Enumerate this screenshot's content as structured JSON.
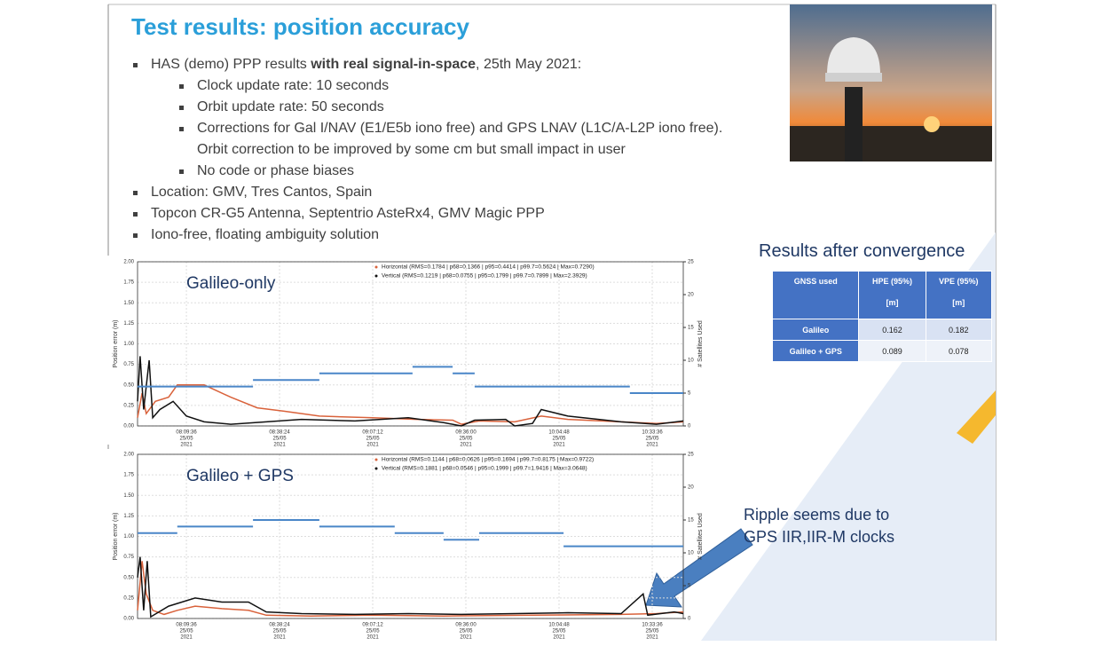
{
  "title": "Test results: position accuracy",
  "bullets": [
    {
      "text": "HAS (demo) PPP results ",
      "bold": "with real signal-in-space",
      "text_after": ", 25th May 2021:",
      "sub": [
        "Clock update rate: 10 seconds",
        "Orbit update rate: 50 seconds",
        "Corrections for Gal I/NAV (E1/E5b iono free) and GPS LNAV (L1C/A-L2P iono free). Orbit correction to be improved by some cm but small impact in user",
        "No code or phase biases"
      ]
    },
    {
      "text": "Location: GMV, Tres Cantos, Spain"
    },
    {
      "text": "Topcon CR-G5 Antenna, Septentrio AsteRx4, GMV Magic PPP"
    },
    {
      "text": "Iono-free, floating ambiguity solution"
    }
  ],
  "table": {
    "title": "Results after convergence",
    "header": [
      "GNSS used",
      "HPE (95%)",
      "VPE (95%)"
    ],
    "header_units": [
      "[m]",
      "[m]"
    ],
    "rows": [
      [
        "Galileo",
        0.162,
        0.182
      ],
      [
        "Galileo + GPS",
        0.089,
        0.078
      ]
    ]
  },
  "annotation": [
    "Ripple seems due to",
    "GPS IIR,IIR-M clocks"
  ],
  "charts": [
    {
      "type": "line",
      "label": "Galileo-only",
      "ylabel": "Position error (m)",
      "y2label": "# Satellites Used",
      "grid": true,
      "xlim": [
        474.5,
        643.2
      ],
      "ylim": [
        0,
        2
      ],
      "y2lim": [
        0,
        25
      ],
      "yticks": [
        {
          "value": 0,
          "label": "0.00"
        },
        {
          "value": 0.25,
          "label": "0.25"
        },
        {
          "value": 0.5,
          "label": "0.50"
        },
        {
          "value": 0.75,
          "label": "0.75"
        },
        {
          "value": 1,
          "label": "1.00"
        },
        {
          "value": 1.25,
          "label": "1.25"
        },
        {
          "value": 1.5,
          "label": "1.50"
        },
        {
          "value": 1.75,
          "label": "1.75"
        },
        {
          "value": 2,
          "label": "2.00"
        }
      ],
      "y2ticks": [
        0,
        5,
        10,
        15,
        20,
        25
      ],
      "xticks": [
        {
          "value": 489.6,
          "label": "08:09:36"
        },
        {
          "value": 518.4,
          "label": "08:38:24"
        },
        {
          "value": 547.2,
          "label": "09:07:12"
        },
        {
          "value": 576,
          "label": "09:36:00"
        },
        {
          "value": 604.8,
          "label": "10:04:48"
        },
        {
          "value": 633.6,
          "label": "10:33:36"
        }
      ],
      "tick_date": "25/05",
      "tick_year": "2021",
      "series": [
        {
          "name": "Horizontal (RMS=0.1784 | p68=0.1366 | p95=0.4414 | p99.7=0.5624 | Max=0.7290)",
          "color": "#d9623b",
          "x": [
            474.5,
            475.9,
            477.2,
            480.0,
            484.1,
            486.8,
            495.1,
            503.3,
            511.5,
            519.8,
            530.7,
            547.2,
            560.9,
            571.9,
            574.6,
            580.1,
            591.1,
            599.3,
            607.5,
            624.0,
            634.9,
            643.2
          ],
          "values": [
            0.1,
            0.4,
            0.15,
            0.3,
            0.35,
            0.5,
            0.5,
            0.35,
            0.22,
            0.18,
            0.12,
            0.1,
            0.08,
            0.07,
            0.02,
            0.06,
            0.05,
            0.12,
            0.08,
            0.05,
            0.03,
            0.05
          ]
        },
        {
          "name": "Vertical (RMS=0.1219 | p68=0.0755 | p95=0.1799 | p99.7=0.7899 | Max=2.3929)",
          "color": "#111111",
          "x": [
            474.5,
            475.3,
            476.4,
            478.1,
            479.2,
            481.4,
            485.5,
            489.6,
            495.1,
            503.3,
            514.3,
            525.2,
            541.7,
            558.2,
            569.1,
            574.6,
            578.7,
            588.3,
            591.1,
            596.6,
            599.3,
            607.5,
            624.0,
            634.9,
            643.2
          ],
          "values": [
            0.3,
            0.85,
            0.2,
            0.8,
            0.1,
            0.2,
            0.3,
            0.12,
            0.05,
            0.02,
            0.05,
            0.08,
            0.06,
            0.1,
            0.04,
            0.0,
            0.07,
            0.08,
            0.0,
            0.03,
            0.2,
            0.12,
            0.05,
            0.02,
            0.06
          ]
        },
        {
          "axis": "y2",
          "color": "#4a86c8",
          "x": [
            474.5,
            510.2,
            510.2,
            510.2,
            530.7,
            530.7,
            530.7,
            559.5,
            559.5,
            559.5,
            571.9,
            571.9,
            571.9,
            578.7,
            578.7,
            578.7,
            626.7,
            626.7,
            626.7,
            643.2
          ],
          "values": [
            6,
            6,
            null,
            7,
            7,
            null,
            8,
            8,
            null,
            9,
            9,
            null,
            8,
            8,
            null,
            6,
            6,
            null,
            5,
            5
          ]
        }
      ]
    },
    {
      "type": "line",
      "label": "Galileo + GPS",
      "ylabel": "Position error (m)",
      "y2label": "# Satellites Used",
      "grid": true,
      "xlim": [
        474.5,
        643.2
      ],
      "ylim": [
        0,
        2
      ],
      "y2lim": [
        0,
        25
      ],
      "yticks": [
        {
          "value": 0,
          "label": "0.00"
        },
        {
          "value": 0.25,
          "label": "0.25"
        },
        {
          "value": 0.5,
          "label": "0.50"
        },
        {
          "value": 0.75,
          "label": "0.75"
        },
        {
          "value": 1,
          "label": "1.00"
        },
        {
          "value": 1.25,
          "label": "1.25"
        },
        {
          "value": 1.5,
          "label": "1.50"
        },
        {
          "value": 1.75,
          "label": "1.75"
        },
        {
          "value": 2,
          "label": "2.00"
        }
      ],
      "y2ticks": [
        0,
        5,
        10,
        15,
        20,
        25
      ],
      "xticks": [
        {
          "value": 489.6,
          "label": "08:09:36"
        },
        {
          "value": 518.4,
          "label": "08:38:24"
        },
        {
          "value": 547.2,
          "label": "09:07:12"
        },
        {
          "value": 576,
          "label": "09:36:00"
        },
        {
          "value": 604.8,
          "label": "10:04:48"
        },
        {
          "value": 633.6,
          "label": "10:33:36"
        }
      ],
      "tick_date": "25/05",
      "tick_year": "2021",
      "series": [
        {
          "name": "Horizontal (RMS=0.1144 | p68=0.0626 | p95=0.1694 | p99.7=0.8175 | Max=0.9722)",
          "color": "#d9623b",
          "x": [
            474.5,
            475.9,
            477.2,
            479.2,
            482.7,
            486.8,
            492.3,
            500.6,
            508.8,
            514.3,
            528.0,
            547.2,
            569.1,
            596.6,
            624.0,
            634.9,
            643.2
          ],
          "values": [
            0.1,
            0.7,
            0.3,
            0.1,
            0.05,
            0.1,
            0.15,
            0.12,
            0.1,
            0.04,
            0.03,
            0.04,
            0.03,
            0.04,
            0.05,
            0.06,
            0.08
          ]
        },
        {
          "name": "Vertical (RMS=0.1881 | p68=0.0546 | p95=0.1999 | p99.7=1.9416 | Max=3.0648)",
          "color": "#111111",
          "x": [
            474.5,
            475.3,
            476.4,
            477.5,
            478.6,
            484.1,
            492.3,
            500.6,
            508.8,
            514.3,
            525.2,
            541.7,
            558.2,
            574.6,
            591.1,
            607.5,
            624.0,
            630.8,
            632.2,
            640.4,
            643.2
          ],
          "values": [
            0.5,
            0.75,
            0.1,
            0.7,
            0.02,
            0.15,
            0.25,
            0.2,
            0.2,
            0.08,
            0.06,
            0.05,
            0.06,
            0.05,
            0.06,
            0.07,
            0.06,
            0.3,
            0.04,
            0.08,
            0.06
          ]
        },
        {
          "axis": "y2",
          "color": "#4a86c8",
          "x": [
            474.5,
            486.8,
            486.8,
            486.8,
            510.2,
            510.2,
            510.2,
            530.7,
            530.7,
            530.7,
            554.0,
            554.0,
            554.0,
            569.1,
            569.1,
            569.1,
            580.1,
            580.1,
            580.1,
            606.2,
            606.2,
            606.2,
            643.2
          ],
          "values": [
            13,
            13,
            null,
            14,
            14,
            null,
            15,
            15,
            null,
            14,
            14,
            null,
            13,
            13,
            null,
            12,
            12,
            null,
            13,
            13,
            null,
            11,
            11
          ]
        }
      ]
    }
  ]
}
